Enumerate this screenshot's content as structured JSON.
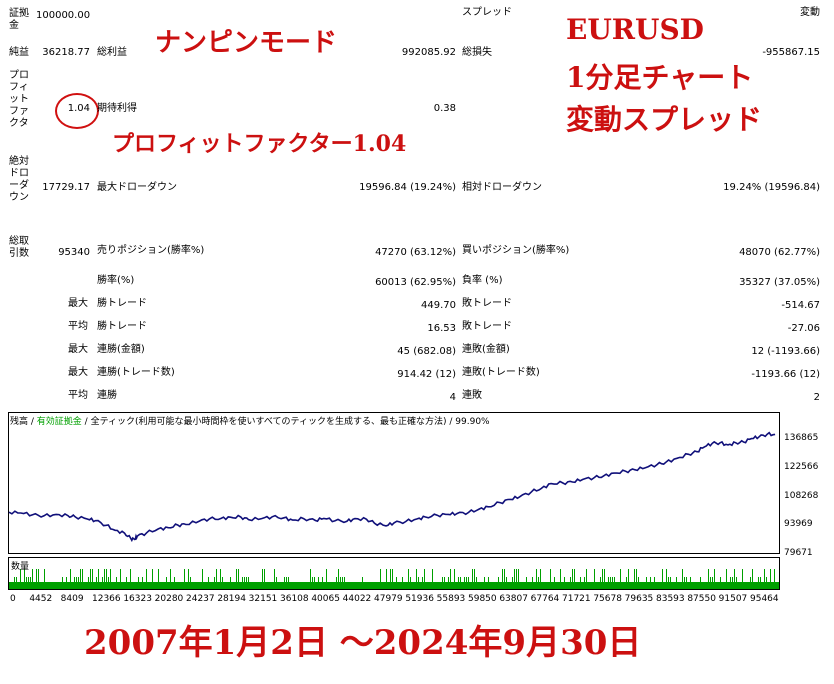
{
  "stats": {
    "deposit_label": "証拠金",
    "deposit_value": "100000.00",
    "spread_label": "スプレッド",
    "spread_value": "変動",
    "net_profit_label": "純益",
    "net_profit_value": "36218.77",
    "gross_profit_label": "総利益",
    "gross_profit_value": "992085.92",
    "gross_loss_label": "総損失",
    "gross_loss_value": "-955867.15",
    "profit_factor_label": "プロフィットファクタ",
    "profit_factor_value": "1.04",
    "expected_payoff_label": "期待利得",
    "expected_payoff_value": "0.38",
    "abs_drawdown_label": "絶対ドローダウン",
    "abs_drawdown_value": "17729.17",
    "max_drawdown_label": "最大ドローダウン",
    "max_drawdown_value": "19596.84 (19.24%)",
    "rel_drawdown_label": "相対ドローダウン",
    "rel_drawdown_value": "19.24% (19596.84)",
    "total_trades_label": "総取引数",
    "total_trades_value": "95340",
    "short_pos_label": "売りポジション(勝率%)",
    "short_pos_value": "47270 (63.12%)",
    "long_pos_label": "買いポジション(勝率%)",
    "long_pos_value": "48070 (62.77%)",
    "win_rate_label": "勝率(%)",
    "win_rate_value": "60013 (62.95%)",
    "loss_rate_label": "負率 (%)",
    "loss_rate_value": "35327 (37.05%)",
    "max_label": "最大",
    "avg_label": "平均",
    "win_trade_label": "勝トレード",
    "loss_trade_label": "敗トレード",
    "max_win_trade": "449.70",
    "max_loss_trade": "-514.67",
    "avg_win_trade": "16.53",
    "avg_loss_trade": "-27.06",
    "consec_win_amount_label": "連勝(金額)",
    "consec_loss_amount_label": "連敗(金額)",
    "consec_win_amount_value": "45 (682.08)",
    "consec_loss_amount_value": "12 (-1193.66)",
    "consec_win_trades_label": "連勝(トレード数)",
    "consec_loss_trades_label": "連敗(トレード数)",
    "consec_win_trades_value": "914.42 (12)",
    "consec_loss_trades_value": "-1193.66 (12)",
    "avg_consec_win_label": "連勝",
    "avg_consec_loss_label": "連敗",
    "avg_consec_win_value": "4",
    "avg_consec_loss_value": "2"
  },
  "overlay": {
    "mode": "ナンピンモード",
    "symbol": "EURUSD",
    "timeframe": "1分足チャート",
    "spread_note": "変動スプレッド",
    "pf_note": "プロフィットファクター1.04",
    "period": "2007年1月2日 ～2024年9月30日"
  },
  "chart_header": {
    "balance": "残高",
    "sep1": " / ",
    "valid_balance": "有効証拠金",
    "sep2": " / ",
    "ticks": "全ティック(利用可能な最小時間枠を使いすべてのティックを生成する、最も正確な方法)",
    "sep3": " / ",
    "quality": "99.90%"
  },
  "volume_label": "数量",
  "colors": {
    "balance_line": "#10107a",
    "volume_bar": "#00a000",
    "overlay_text": "#cc1010"
  },
  "chart_data": {
    "type": "line",
    "title": "",
    "xlabel": "",
    "ylabel": "",
    "x_ticks": [
      "0",
      "4452",
      "8409",
      "12366",
      "16323",
      "20280",
      "24237",
      "28194",
      "32151",
      "36108",
      "40065",
      "44022",
      "47979",
      "51936",
      "55893",
      "59850",
      "63807",
      "67764",
      "71721",
      "75678",
      "79635",
      "83593",
      "87550",
      "91507",
      "95464"
    ],
    "y_ticks": [
      "136865",
      "122566",
      "108268",
      "93969",
      "79671"
    ],
    "ylim": [
      79671,
      143000
    ],
    "xlim": [
      0,
      98000
    ],
    "series": [
      {
        "values": [
          [
            0,
            100000
          ],
          [
            1500,
            99600
          ],
          [
            3000,
            98700
          ],
          [
            4452,
            98200
          ],
          [
            6000,
            98900
          ],
          [
            7500,
            98300
          ],
          [
            8409,
            97700
          ],
          [
            10000,
            96600
          ],
          [
            11000,
            95800
          ],
          [
            12366,
            93500
          ],
          [
            13500,
            91000
          ],
          [
            14700,
            89600
          ],
          [
            15500,
            86900
          ],
          [
            16000,
            86400
          ],
          [
            16323,
            88100
          ],
          [
            17500,
            89700
          ],
          [
            19000,
            91700
          ],
          [
            20280,
            92300
          ],
          [
            21500,
            93600
          ],
          [
            22500,
            93900
          ],
          [
            24237,
            95600
          ],
          [
            25500,
            96700
          ],
          [
            27000,
            96900
          ],
          [
            28194,
            97500
          ],
          [
            29500,
            97600
          ],
          [
            30500,
            96300
          ],
          [
            32151,
            96800
          ],
          [
            33500,
            97700
          ],
          [
            35000,
            97200
          ],
          [
            36108,
            96100
          ],
          [
            37500,
            96800
          ],
          [
            39000,
            95900
          ],
          [
            40065,
            96900
          ],
          [
            41500,
            95800
          ],
          [
            43000,
            95500
          ],
          [
            44022,
            96800
          ],
          [
            45500,
            96500
          ],
          [
            46500,
            94600
          ],
          [
            47979,
            93200
          ],
          [
            49000,
            94700
          ],
          [
            50500,
            95400
          ],
          [
            51936,
            96700
          ],
          [
            53000,
            97600
          ],
          [
            54500,
            98500
          ],
          [
            55893,
            98900
          ],
          [
            57000,
            99300
          ],
          [
            58500,
            99900
          ],
          [
            59850,
            101600
          ],
          [
            61000,
            102700
          ],
          [
            62500,
            104800
          ],
          [
            63807,
            106400
          ],
          [
            65000,
            107700
          ],
          [
            66500,
            110200
          ],
          [
            67764,
            111900
          ],
          [
            69000,
            114300
          ],
          [
            70500,
            114600
          ],
          [
            71721,
            115100
          ],
          [
            73000,
            116300
          ],
          [
            74500,
            117300
          ],
          [
            75678,
            118100
          ],
          [
            77000,
            119500
          ],
          [
            78500,
            120400
          ],
          [
            79635,
            121200
          ],
          [
            81000,
            122200
          ],
          [
            82500,
            123800
          ],
          [
            83593,
            124900
          ],
          [
            85000,
            126900
          ],
          [
            86500,
            128900
          ],
          [
            87550,
            130200
          ],
          [
            88500,
            132600
          ],
          [
            89500,
            134300
          ],
          [
            90500,
            134600
          ],
          [
            91507,
            133600
          ],
          [
            92500,
            134600
          ],
          [
            93500,
            135000
          ],
          [
            94500,
            136700
          ],
          [
            95464,
            137600
          ],
          [
            96500,
            138900
          ],
          [
            97500,
            138800
          ]
        ]
      }
    ]
  }
}
